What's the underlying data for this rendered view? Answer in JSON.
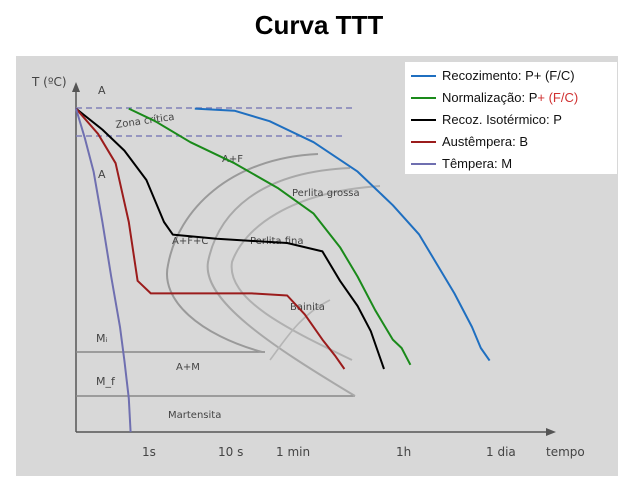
{
  "title": "Curva TTT",
  "chart_data": {
    "type": "line",
    "title": "Curva TTT",
    "ylabel": "T (ºC)",
    "xlabel": "tempo",
    "x_ticks": [
      "1s",
      "10 s",
      "1 min",
      "1h",
      "1 dia"
    ],
    "region_labels": {
      "austenite": "A",
      "critical_zone": "Zona crítica",
      "austenite_lower": "A",
      "austenite_ferrite": "A+F",
      "coarse_pearlite": "Perlita grossa",
      "austenite_ferrite_cementite": "A+F+C",
      "fine_pearlite": "Perlita fina",
      "bainite": "Bainita",
      "ms": "Mᵢ",
      "mf": "M_f",
      "austenite_martensite": "A+M",
      "martensite": "Martensita"
    },
    "series": [
      {
        "name": "Recozimento: P+ (F/C)",
        "name_main": "Recozimento: P+ (F/C)",
        "color": "#1f6fc0",
        "points": [
          [
            1.35,
            0.77
          ],
          [
            1.8,
            0.765
          ],
          [
            2.2,
            0.74
          ],
          [
            2.7,
            0.69
          ],
          [
            3.2,
            0.62
          ],
          [
            3.6,
            0.54
          ],
          [
            3.9,
            0.47
          ],
          [
            4.1,
            0.4
          ],
          [
            4.3,
            0.33
          ],
          [
            4.5,
            0.25
          ],
          [
            4.6,
            0.2
          ],
          [
            4.7,
            0.17
          ]
        ]
      },
      {
        "name": "Normalização: P+ (F/C)",
        "name_main": "Normalização: P",
        "name_accent": "+ (F/C)",
        "accent_color": "#d03030",
        "color": "#1a8a1a",
        "points": [
          [
            0.6,
            0.77
          ],
          [
            0.9,
            0.74
          ],
          [
            1.3,
            0.69
          ],
          [
            1.8,
            0.64
          ],
          [
            2.3,
            0.58
          ],
          [
            2.7,
            0.52
          ],
          [
            3.0,
            0.44
          ],
          [
            3.2,
            0.37
          ],
          [
            3.4,
            0.29
          ],
          [
            3.6,
            0.22
          ],
          [
            3.7,
            0.2
          ],
          [
            3.8,
            0.16
          ]
        ]
      },
      {
        "name": "Recoz. Isotérmico: P",
        "name_main": "Recoz. Isotérmico: P",
        "color": "#000000",
        "points": [
          [
            0.0,
            0.77
          ],
          [
            0.3,
            0.72
          ],
          [
            0.55,
            0.67
          ],
          [
            0.8,
            0.6
          ],
          [
            1.0,
            0.5
          ],
          [
            1.1,
            0.47
          ],
          [
            1.6,
            0.46
          ],
          [
            2.4,
            0.45
          ],
          [
            2.8,
            0.43
          ],
          [
            3.0,
            0.36
          ],
          [
            3.2,
            0.3
          ],
          [
            3.35,
            0.24
          ],
          [
            3.45,
            0.18
          ],
          [
            3.5,
            0.15
          ]
        ]
      },
      {
        "name": "Austêmpera: B",
        "name_main": "Austêmpera: B",
        "color": "#9b1c1c",
        "points": [
          [
            0.0,
            0.77
          ],
          [
            0.25,
            0.71
          ],
          [
            0.45,
            0.64
          ],
          [
            0.6,
            0.5
          ],
          [
            0.7,
            0.36
          ],
          [
            0.85,
            0.33
          ],
          [
            1.5,
            0.33
          ],
          [
            2.0,
            0.33
          ],
          [
            2.4,
            0.325
          ],
          [
            2.6,
            0.28
          ],
          [
            2.8,
            0.22
          ],
          [
            2.95,
            0.18
          ],
          [
            3.05,
            0.15
          ]
        ]
      },
      {
        "name": "Têmpera: M",
        "name_main": "Têmpera: M",
        "color": "#6f6fb0",
        "points": [
          [
            0.0,
            0.77
          ],
          [
            0.1,
            0.7
          ],
          [
            0.2,
            0.62
          ],
          [
            0.3,
            0.5
          ],
          [
            0.4,
            0.37
          ],
          [
            0.5,
            0.25
          ],
          [
            0.55,
            0.17
          ],
          [
            0.6,
            0.08
          ],
          [
            0.62,
            0.0
          ]
        ]
      }
    ]
  }
}
